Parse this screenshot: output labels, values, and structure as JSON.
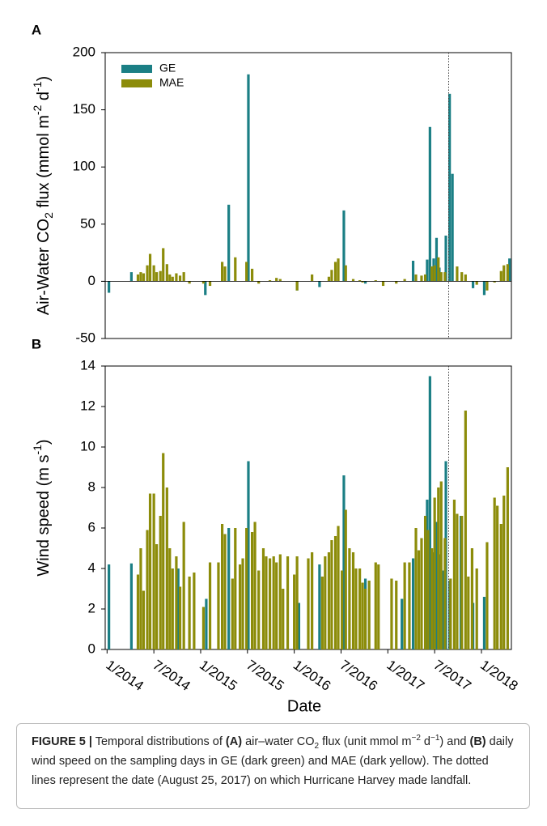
{
  "chart_data": [
    {
      "type": "bar",
      "panel_label": "A",
      "y_label": [
        {
          "text": "Air-Water CO"
        },
        {
          "text": "2",
          "style": "sub"
        },
        {
          "text": " flux (mmol m"
        },
        {
          "text": "-2",
          "style": "sup"
        },
        {
          "text": " d"
        },
        {
          "text": "-1",
          "style": "sup"
        },
        {
          "text": ")"
        }
      ],
      "xlim": [
        2013.98,
        2018.32
      ],
      "ylim": [
        -50,
        200
      ],
      "yticks": [
        -50,
        0,
        50,
        100,
        150,
        200
      ],
      "vline": 2017.65,
      "legend": "upper left",
      "series": [
        {
          "name": "GE",
          "color": "#1b7f85",
          "x": [
            2014.02,
            2014.26,
            2015.05,
            2015.3,
            2015.51,
            2016.03,
            2016.27,
            2016.53,
            2016.76,
            2017.27,
            2017.42,
            2017.45,
            2017.49,
            2017.52,
            2017.55,
            2017.62,
            2017.66,
            2017.69,
            2017.91,
            2018.03,
            2018.3
          ],
          "values": [
            -10,
            8,
            -12,
            67,
            181,
            -8,
            -5,
            62,
            -2,
            18,
            19,
            135,
            20,
            38,
            12,
            40,
            164,
            94,
            -6,
            -12,
            20
          ]
        },
        {
          "name": "MAE",
          "color": "#8c8c0a",
          "x": [
            2014.33,
            2014.36,
            2014.39,
            2014.43,
            2014.46,
            2014.5,
            2014.53,
            2014.57,
            2014.6,
            2014.64,
            2014.67,
            2014.7,
            2014.74,
            2014.78,
            2014.82,
            2014.88,
            2015.03,
            2015.1,
            2015.23,
            2015.26,
            2015.37,
            2015.49,
            2015.55,
            2015.62,
            2015.74,
            2015.81,
            2015.85,
            2016.03,
            2016.19,
            2016.37,
            2016.4,
            2016.44,
            2016.47,
            2016.55,
            2016.63,
            2016.7,
            2016.73,
            2016.87,
            2016.95,
            2017.09,
            2017.18,
            2017.3,
            2017.36,
            2017.4,
            2017.47,
            2017.5,
            2017.54,
            2017.57,
            2017.61,
            2017.74,
            2017.79,
            2017.83,
            2017.95,
            2018.06,
            2018.14,
            2018.21,
            2018.24,
            2018.28
          ],
          "values": [
            6,
            8,
            7,
            14,
            24,
            14,
            8,
            9,
            29,
            15,
            6,
            4,
            7,
            5,
            8,
            -2,
            -2,
            -4,
            17,
            13,
            21,
            17,
            11,
            -2,
            1,
            3,
            2,
            -8,
            6,
            4,
            10,
            17,
            20,
            14,
            2,
            1,
            -1,
            1,
            -4,
            -2,
            2,
            6,
            5,
            6,
            13,
            14,
            21,
            8,
            8,
            13,
            8,
            6,
            -3,
            -8,
            -1,
            9,
            14,
            15
          ]
        }
      ]
    },
    {
      "type": "bar",
      "panel_label": "B",
      "y_label": [
        {
          "text": "Wind speed (m s"
        },
        {
          "text": "-1",
          "style": "sup"
        },
        {
          "text": ")"
        }
      ],
      "x_label": "Date",
      "xlim": [
        2013.98,
        2018.32
      ],
      "ylim": [
        0,
        14
      ],
      "yticks": [
        0,
        2,
        4,
        6,
        8,
        10,
        12,
        14
      ],
      "xticks": [
        {
          "value": 2014,
          "label": "1/2014"
        },
        {
          "value": 2014.5,
          "label": "7/2014"
        },
        {
          "value": 2015,
          "label": "1/2015"
        },
        {
          "value": 2015.5,
          "label": "7/2015"
        },
        {
          "value": 2016,
          "label": "1/2016"
        },
        {
          "value": 2016.5,
          "label": "7/2016"
        },
        {
          "value": 2017,
          "label": "1/2017"
        },
        {
          "value": 2017.5,
          "label": "7/2017"
        },
        {
          "value": 2018,
          "label": "1/2018"
        }
      ],
      "vline": 2017.65,
      "series": [
        {
          "color": "#1b7f85",
          "x": [
            2014.02,
            2014.26,
            2014.76,
            2015.06,
            2015.3,
            2015.51,
            2016.05,
            2016.27,
            2016.53,
            2016.76,
            2017.15,
            2017.27,
            2017.42,
            2017.45,
            2017.49,
            2017.52,
            2017.55,
            2017.59,
            2017.62,
            2017.66,
            2017.78,
            2017.91,
            2018.03
          ],
          "values": [
            4.2,
            4.25,
            4.0,
            2.5,
            6.0,
            9.3,
            2.3,
            4.2,
            8.6,
            3.5,
            2.5,
            4.5,
            7.4,
            13.5,
            4.8,
            6.3,
            4.7,
            3.9,
            9.3,
            3.4,
            6.6,
            2.3,
            2.6
          ]
        },
        {
          "color": "#8c8c0a",
          "x": [
            2014.33,
            2014.36,
            2014.39,
            2014.43,
            2014.46,
            2014.5,
            2014.53,
            2014.57,
            2014.6,
            2014.64,
            2014.67,
            2014.7,
            2014.74,
            2014.78,
            2014.82,
            2014.88,
            2014.93,
            2015.03,
            2015.1,
            2015.19,
            2015.23,
            2015.26,
            2015.34,
            2015.37,
            2015.42,
            2015.45,
            2015.49,
            2015.55,
            2015.58,
            2015.62,
            2015.67,
            2015.7,
            2015.74,
            2015.78,
            2015.81,
            2015.85,
            2015.88,
            2015.93,
            2016.0,
            2016.03,
            2016.15,
            2016.19,
            2016.3,
            2016.33,
            2016.37,
            2016.4,
            2016.44,
            2016.47,
            2016.51,
            2016.55,
            2016.59,
            2016.63,
            2016.66,
            2016.7,
            2016.73,
            2016.76,
            2016.8,
            2016.87,
            2016.9,
            2017.04,
            2017.09,
            2017.18,
            2017.23,
            2017.3,
            2017.33,
            2017.36,
            2017.4,
            2017.43,
            2017.47,
            2017.5,
            2017.54,
            2017.57,
            2017.61,
            2017.67,
            2017.71,
            2017.74,
            2017.79,
            2017.83,
            2017.86,
            2017.9,
            2017.95,
            2018.06,
            2018.14,
            2018.17,
            2018.21,
            2018.24,
            2018.28
          ],
          "values": [
            3.7,
            5.0,
            2.9,
            5.9,
            7.7,
            7.7,
            5.2,
            6.6,
            9.7,
            8.0,
            5.0,
            4.0,
            4.6,
            3.1,
            6.3,
            3.6,
            3.8,
            2.1,
            4.3,
            4.3,
            6.2,
            5.7,
            3.5,
            6.0,
            4.2,
            4.5,
            6.0,
            5.8,
            6.3,
            3.9,
            5.0,
            4.6,
            4.5,
            4.6,
            4.3,
            4.7,
            3.0,
            4.6,
            3.7,
            4.6,
            4.5,
            4.8,
            3.6,
            4.6,
            4.8,
            5.4,
            5.6,
            6.1,
            3.9,
            6.9,
            5.0,
            4.8,
            4.0,
            4.0,
            3.3,
            3.0,
            3.4,
            4.3,
            4.2,
            3.5,
            3.4,
            4.3,
            4.3,
            6.0,
            4.9,
            5.5,
            6.6,
            5.9,
            5.0,
            7.5,
            8.0,
            8.3,
            5.5,
            3.5,
            7.4,
            6.7,
            6.6,
            11.8,
            3.6,
            5.0,
            4.0,
            5.3,
            7.5,
            7.1,
            6.2,
            7.6,
            9.0
          ]
        }
      ]
    }
  ],
  "caption": {
    "parts": [
      {
        "text": "FIGURE 5 |",
        "style": "bold"
      },
      {
        "text": " Temporal distributions of "
      },
      {
        "text": "(A)",
        "style": "bold"
      },
      {
        "text": " air–water CO"
      },
      {
        "text": "2",
        "style": "sub"
      },
      {
        "text": " flux (unit mmol m"
      },
      {
        "text": "−2",
        "style": "sup"
      },
      {
        "text": " d"
      },
      {
        "text": "−1",
        "style": "sup"
      },
      {
        "text": ") and "
      },
      {
        "text": "(B)",
        "style": "bold"
      },
      {
        "text": " daily wind speed on the sampling days in GE (dark green) and MAE (dark yellow). The dotted lines represent the date (August 25, 2017) on which Hurricane Harvey made landfall."
      }
    ]
  }
}
